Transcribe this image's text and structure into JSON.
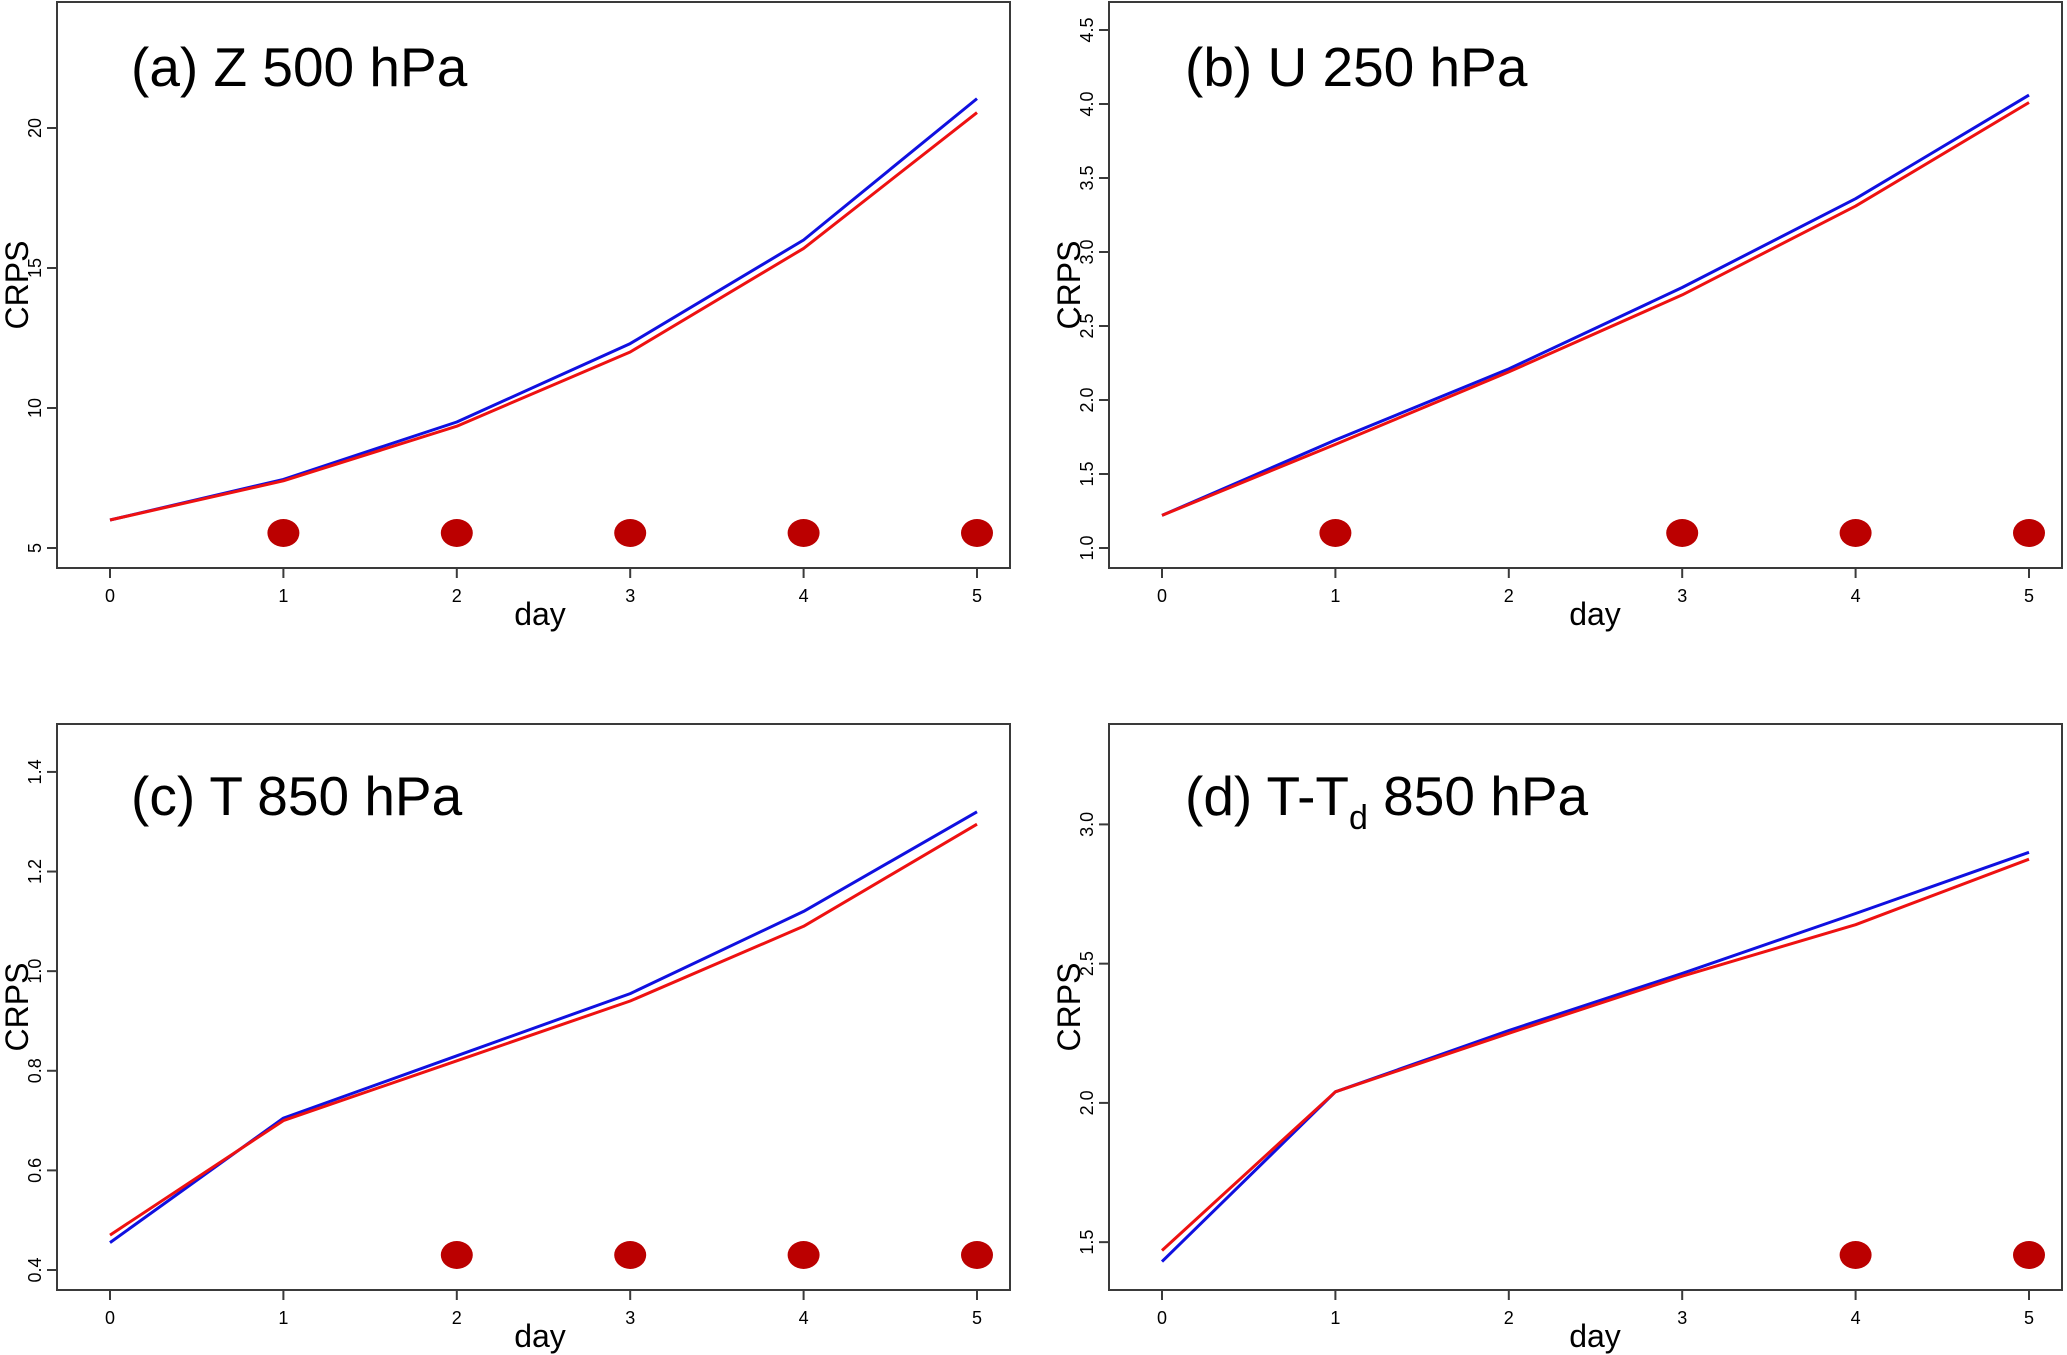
{
  "colors": {
    "series_blue": "#1010e0",
    "series_red": "#ee1111",
    "marker": "#bb0000"
  },
  "chart_data": [
    {
      "type": "line",
      "title": "(a) Z 500 hPa",
      "xlabel": "day",
      "ylabel": "CRPS",
      "x": [
        0,
        1,
        2,
        3,
        4,
        5
      ],
      "xlim": [
        0,
        5
      ],
      "ylim": [
        5,
        23.5
      ],
      "yticks": [
        "5",
        "10",
        "15",
        "20"
      ],
      "series": [
        {
          "color": "blue",
          "values": [
            6.0,
            7.45,
            9.5,
            12.3,
            16.0,
            21.05
          ]
        },
        {
          "color": "red",
          "values": [
            6.0,
            7.4,
            9.35,
            12.0,
            15.7,
            20.55
          ]
        }
      ],
      "markers_at_days": [
        1,
        2,
        3,
        4,
        5
      ]
    },
    {
      "type": "line",
      "title": "(b) U 250 hPa",
      "xlabel": "day",
      "ylabel": "CRPS",
      "x": [
        0,
        1,
        2,
        3,
        4,
        5
      ],
      "xlim": [
        0,
        5
      ],
      "ylim": [
        1.0,
        4.5
      ],
      "yticks": [
        "1.0",
        "1.5",
        "2.0",
        "2.5",
        "3.0",
        "3.5",
        "4.0",
        "4.5"
      ],
      "series": [
        {
          "color": "blue",
          "values": [
            1.22,
            1.73,
            2.21,
            2.76,
            3.36,
            4.06
          ]
        },
        {
          "color": "red",
          "values": [
            1.22,
            1.7,
            2.19,
            2.71,
            3.31,
            4.01
          ]
        }
      ],
      "markers_at_days": [
        1,
        3,
        4,
        5
      ]
    },
    {
      "type": "line",
      "title": "(c) T 850 hPa",
      "xlabel": "day",
      "ylabel": "CRPS",
      "x": [
        0,
        1,
        2,
        3,
        4,
        5
      ],
      "xlim": [
        0,
        5
      ],
      "ylim": [
        0.4,
        1.44
      ],
      "yticks": [
        "0.4",
        "0.6",
        "0.8",
        "1.0",
        "1.2",
        "1.4"
      ],
      "series": [
        {
          "color": "blue",
          "values": [
            0.455,
            0.705,
            0.83,
            0.955,
            1.12,
            1.32
          ]
        },
        {
          "color": "red",
          "values": [
            0.47,
            0.7,
            0.82,
            0.94,
            1.09,
            1.295
          ]
        }
      ],
      "markers_at_days": [
        2,
        3,
        4,
        5
      ]
    },
    {
      "type": "line",
      "title_main": "(d) T-T",
      "title_sub": "d",
      "title_rest": " 850 hPa",
      "xlabel": "day",
      "ylabel": "CRPS",
      "x": [
        0,
        1,
        2,
        3,
        4,
        5
      ],
      "xlim": [
        0,
        5
      ],
      "ylim": [
        1.4,
        3.26
      ],
      "yticks": [
        "1.5",
        "2.0",
        "2.5",
        "3.0"
      ],
      "series": [
        {
          "color": "blue",
          "values": [
            1.43,
            2.04,
            2.26,
            2.465,
            2.68,
            2.9
          ]
        },
        {
          "color": "red",
          "values": [
            1.47,
            2.04,
            2.25,
            2.455,
            2.64,
            2.875
          ]
        }
      ],
      "markers_at_days": [
        4,
        5
      ]
    }
  ],
  "xticks": [
    "0",
    "1",
    "2",
    "3",
    "4",
    "5"
  ]
}
